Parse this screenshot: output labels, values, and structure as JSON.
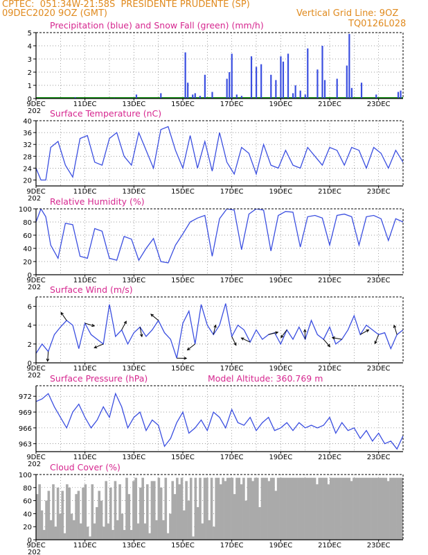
{
  "header": {
    "line1_left": "CPTEC:  051:34W-21:58S  PRESIDENTE PRUDENTE (SP)",
    "line2_left": "09DEC2020 9OZ (GMT)",
    "line2_right": "Vertical Grid Line: 9OZ",
    "line3_right": "TQ0126L028"
  },
  "colors": {
    "header": "#e08a1e",
    "title": "#d6278f",
    "line": "#3a4ee0",
    "snow": "#1a9a1a",
    "cloud": "#aaaaaa",
    "wind_arrow": "#000000"
  },
  "x_labels": [
    "9DEC",
    "11DEC",
    "13DEC",
    "15DEC",
    "17DEC",
    "19DEC",
    "21DEC",
    "23DEC"
  ],
  "year_fragment": "202",
  "chart_data": [
    {
      "type": "bar",
      "title": "Precipitation (blue) and Snow Fall (green) (mm/h)",
      "ylim": [
        0,
        5
      ],
      "yticks": [
        "0",
        "1",
        "2",
        "3",
        "4",
        "5"
      ],
      "x_range_days": [
        0,
        15
      ],
      "precip": [
        [
          1.6,
          0.1
        ],
        [
          3.2,
          0.05
        ],
        [
          4.1,
          0.3
        ],
        [
          5.1,
          0.4
        ],
        [
          6.1,
          3.5
        ],
        [
          6.2,
          1.2
        ],
        [
          6.4,
          0.3
        ],
        [
          6.5,
          0.4
        ],
        [
          6.7,
          0.2
        ],
        [
          6.9,
          1.8
        ],
        [
          7.2,
          0.5
        ],
        [
          7.8,
          1.5
        ],
        [
          7.9,
          2.0
        ],
        [
          8.0,
          3.4
        ],
        [
          8.2,
          0.3
        ],
        [
          8.4,
          0.2
        ],
        [
          8.8,
          3.2
        ],
        [
          9.0,
          2.4
        ],
        [
          9.2,
          2.6
        ],
        [
          9.6,
          1.8
        ],
        [
          9.8,
          1.4
        ],
        [
          10.0,
          3.2
        ],
        [
          10.1,
          2.8
        ],
        [
          10.3,
          3.4
        ],
        [
          10.5,
          0.4
        ],
        [
          10.6,
          1.0
        ],
        [
          10.8,
          0.6
        ],
        [
          11.0,
          0.3
        ],
        [
          11.1,
          3.8
        ],
        [
          11.5,
          2.2
        ],
        [
          11.7,
          4.0
        ],
        [
          11.8,
          1.4
        ],
        [
          12.3,
          1.5
        ],
        [
          12.7,
          2.5
        ],
        [
          12.8,
          4.9
        ],
        [
          12.9,
          0.8
        ],
        [
          13.3,
          1.2
        ],
        [
          13.9,
          0.3
        ],
        [
          14.8,
          0.5
        ],
        [
          14.9,
          0.6
        ]
      ],
      "snow": []
    },
    {
      "type": "line",
      "title": "Surface Temperature (nC)",
      "ylim": [
        18,
        40
      ],
      "yticks": [
        "20",
        "24",
        "28",
        "32",
        "36",
        "40"
      ],
      "x_range_days": [
        0,
        15
      ],
      "x": [
        0,
        0.2,
        0.4,
        0.6,
        0.9,
        1.2,
        1.5,
        1.8,
        2.1,
        2.4,
        2.7,
        3.0,
        3.3,
        3.6,
        3.9,
        4.2,
        4.5,
        4.8,
        5.1,
        5.4,
        5.7,
        6.0,
        6.3,
        6.6,
        6.9,
        7.2,
        7.5,
        7.8,
        8.1,
        8.4,
        8.7,
        9.0,
        9.3,
        9.6,
        9.9,
        10.2,
        10.5,
        10.8,
        11.1,
        11.4,
        11.7,
        12.0,
        12.3,
        12.6,
        12.9,
        13.2,
        13.5,
        13.8,
        14.1,
        14.4,
        14.7,
        15.0
      ],
      "y": [
        24,
        20,
        20,
        31,
        33,
        25,
        21,
        34,
        35,
        26,
        25,
        34,
        36,
        28,
        25,
        36,
        30,
        24,
        37,
        38,
        30,
        24,
        35,
        24,
        33,
        23,
        36,
        26,
        22,
        31,
        29,
        22,
        32,
        25,
        24,
        30,
        25,
        24,
        31,
        28,
        25,
        31,
        30,
        25,
        31,
        30,
        24,
        31,
        29,
        24,
        30,
        26
      ]
    },
    {
      "type": "line",
      "title": "Relative Humidity (%)",
      "ylim": [
        0,
        100
      ],
      "yticks": [
        "0",
        "20",
        "40",
        "60",
        "80",
        "100"
      ],
      "x_range_days": [
        0,
        15
      ],
      "x": [
        0,
        0.2,
        0.4,
        0.6,
        0.9,
        1.2,
        1.5,
        1.8,
        2.1,
        2.4,
        2.7,
        3.0,
        3.3,
        3.6,
        3.9,
        4.2,
        4.5,
        4.8,
        5.1,
        5.4,
        5.7,
        6.0,
        6.3,
        6.6,
        6.9,
        7.2,
        7.5,
        7.8,
        8.1,
        8.4,
        8.7,
        9.0,
        9.3,
        9.6,
        9.9,
        10.2,
        10.5,
        10.8,
        11.1,
        11.4,
        11.7,
        12.0,
        12.3,
        12.6,
        12.9,
        13.2,
        13.5,
        13.8,
        14.1,
        14.4,
        14.7,
        15.0
      ],
      "y": [
        80,
        100,
        88,
        45,
        25,
        78,
        76,
        28,
        25,
        70,
        66,
        25,
        22,
        58,
        54,
        22,
        40,
        55,
        20,
        18,
        45,
        62,
        80,
        86,
        90,
        28,
        85,
        100,
        98,
        38,
        92,
        100,
        98,
        36,
        90,
        96,
        95,
        42,
        88,
        90,
        86,
        45,
        90,
        92,
        88,
        45,
        88,
        90,
        85,
        52,
        85,
        80
      ]
    },
    {
      "type": "line",
      "title": "Surface Wind (m/s)",
      "ylim": [
        0,
        7
      ],
      "yticks": [
        "0",
        "2",
        "4",
        "6"
      ],
      "x_range_days": [
        0,
        15
      ],
      "x": [
        0,
        0.25,
        0.5,
        0.75,
        1.0,
        1.25,
        1.5,
        1.75,
        2.0,
        2.25,
        2.5,
        2.75,
        3.0,
        3.25,
        3.5,
        3.75,
        4.0,
        4.25,
        4.5,
        4.75,
        5.0,
        5.25,
        5.5,
        5.75,
        6.0,
        6.25,
        6.5,
        6.75,
        7.0,
        7.25,
        7.5,
        7.75,
        8.0,
        8.25,
        8.5,
        8.75,
        9.0,
        9.25,
        9.5,
        9.75,
        10.0,
        10.25,
        10.5,
        10.75,
        11.0,
        11.25,
        11.5,
        11.75,
        12.0,
        12.25,
        12.5,
        12.75,
        13.0,
        13.25,
        13.5,
        13.75,
        14.0,
        14.25,
        14.5,
        14.75,
        15.0
      ],
      "y": [
        1.0,
        2.0,
        1.2,
        3.0,
        3.8,
        4.5,
        4.0,
        1.5,
        4.2,
        3.0,
        2.5,
        2.0,
        6.2,
        2.8,
        3.5,
        2.0,
        3.2,
        3.8,
        2.8,
        3.5,
        4.5,
        3.2,
        2.5,
        0.5,
        4.2,
        5.5,
        2.0,
        6.2,
        4.0,
        3.0,
        4.0,
        6.3,
        2.8,
        4.0,
        3.5,
        2.2,
        3.5,
        2.5,
        3.0,
        3.2,
        2.0,
        3.5,
        2.5,
        3.8,
        2.5,
        4.5,
        3.0,
        2.5,
        3.8,
        2.0,
        2.5,
        3.5,
        5.0,
        3.0,
        4.0,
        3.5,
        3.0,
        3.2,
        1.5,
        3.0,
        3.5
      ]
    },
    {
      "type": "line",
      "title": "Surface Pressure (hPa)",
      "subtitle": "Model Altitude: 360.769 m",
      "ylim": [
        961.5,
        974
      ],
      "yticks": [
        "963",
        "966",
        "969",
        "972"
      ],
      "x_range_days": [
        0,
        15
      ],
      "x": [
        0,
        0.25,
        0.5,
        0.75,
        1.0,
        1.25,
        1.5,
        1.75,
        2.0,
        2.25,
        2.5,
        2.75,
        3.0,
        3.25,
        3.5,
        3.75,
        4.0,
        4.25,
        4.5,
        4.75,
        5.0,
        5.25,
        5.5,
        5.75,
        6.0,
        6.25,
        6.5,
        6.75,
        7.0,
        7.25,
        7.5,
        7.75,
        8.0,
        8.25,
        8.5,
        8.75,
        9.0,
        9.25,
        9.5,
        9.75,
        10.0,
        10.25,
        10.5,
        10.75,
        11.0,
        11.25,
        11.5,
        11.75,
        12.0,
        12.25,
        12.5,
        12.75,
        13.0,
        13.25,
        13.5,
        13.75,
        14.0,
        14.25,
        14.5,
        14.75,
        15.0
      ],
      "y": [
        971,
        971.5,
        972.5,
        970,
        968,
        966,
        969,
        970.5,
        968,
        966,
        967.5,
        970,
        968,
        972.5,
        970,
        966,
        968,
        969,
        965.5,
        967.5,
        966.5,
        962.5,
        964,
        967,
        969,
        965,
        966,
        967.5,
        965.5,
        969,
        968,
        966,
        969.5,
        967,
        966.5,
        968,
        965.5,
        967,
        968,
        965.5,
        966,
        967,
        965.5,
        967,
        966,
        966.5,
        966,
        966.5,
        968,
        965,
        967,
        965.5,
        966,
        964,
        965.5,
        963.5,
        965,
        963,
        963.5,
        962,
        964.5
      ]
    },
    {
      "type": "bar",
      "title": "Cloud Cover (%)",
      "ylim": [
        0,
        100
      ],
      "yticks": [
        "0",
        "20",
        "40",
        "60",
        "80",
        "100"
      ],
      "x_range_days": [
        0,
        15
      ],
      "values": [
        70,
        85,
        45,
        15,
        60,
        75,
        30,
        85,
        20,
        80,
        40,
        75,
        10,
        85,
        80,
        40,
        30,
        70,
        75,
        25,
        80,
        85,
        20,
        5,
        85,
        25,
        50,
        75,
        60,
        20,
        90,
        25,
        80,
        15,
        90,
        30,
        85,
        40,
        15,
        95,
        70,
        15,
        90,
        95,
        25,
        80,
        95,
        25,
        85,
        10,
        90,
        90,
        30,
        95,
        80,
        30,
        95,
        10,
        40,
        90,
        70,
        95,
        85,
        95,
        45,
        90,
        60,
        95,
        5,
        95,
        50,
        95,
        25,
        95,
        95,
        30,
        95,
        20,
        95,
        95,
        85,
        95,
        90,
        95,
        95,
        95,
        70,
        95,
        95,
        85,
        95,
        60,
        95,
        95,
        90,
        95,
        95,
        50,
        95,
        95,
        95,
        90,
        95,
        95,
        75,
        95,
        95,
        95,
        95,
        95,
        95,
        95,
        95,
        95,
        95,
        95,
        95,
        95,
        95,
        95,
        95,
        95,
        85,
        95,
        95,
        95,
        95,
        85,
        95,
        95,
        95,
        95,
        95,
        95,
        95,
        95,
        95,
        90,
        95,
        95,
        95,
        95,
        95,
        95,
        95,
        95,
        95,
        95,
        95,
        95,
        95,
        95,
        95,
        90,
        95,
        95,
        95,
        95,
        95,
        95
      ]
    }
  ]
}
